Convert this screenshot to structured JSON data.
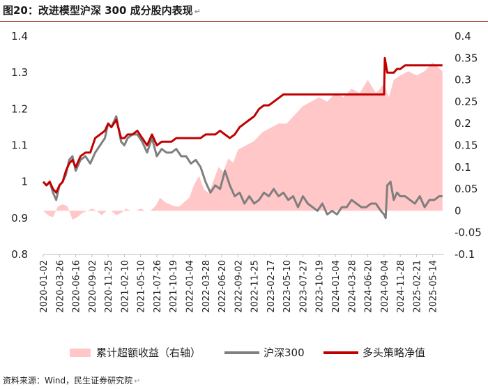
{
  "header": {
    "title": "图20：改进模型沪深 300 成分股内表现",
    "return_mark": "↵"
  },
  "footer": {
    "source": "资料来源：Wind，民生证券研究院"
  },
  "colors": {
    "area": "#ffc7c7",
    "hs300": "#7f7f7f",
    "strategy": "#c00000",
    "rule": "#8b0000"
  },
  "chart_data": {
    "type": "line",
    "title": "图20：改进模型沪深 300 成分股内表现",
    "x_tick_labels": [
      "2020-01-02",
      "2020-03-26",
      "2020-06-16",
      "2020-09-02",
      "2020-11-25",
      "2021-02-10",
      "2021-05-10",
      "2021-07-26",
      "2021-10-19",
      "2022-01-04",
      "2022-03-28",
      "2022-06-20",
      "2022-09-02",
      "2022-11-25",
      "2023-02-17",
      "2023-05-10",
      "2023-07-27",
      "2023-10-19",
      "2024-01-04",
      "2024-03-28",
      "2024-06-20",
      "2024-09-04",
      "2024-11-28",
      "2025-02-21",
      "2025-05-14"
    ],
    "x_range": [
      0,
      24.7
    ],
    "y_left": {
      "min": 0.8,
      "max": 1.4,
      "ticks": [
        "0.8",
        "0.9",
        "1",
        "1.1",
        "1.2",
        "1.3",
        "1.4"
      ]
    },
    "y_right": {
      "min": -0.1,
      "max": 0.4,
      "ticks": [
        "-0.1",
        "-0.05",
        "0",
        "0.05",
        "0.1",
        "0.15",
        "0.2",
        "0.25",
        "0.3",
        "0.35",
        "0.4"
      ]
    },
    "legend": [
      "累计超额收益（右轴）",
      "沪深300",
      "多头策略净值"
    ],
    "legend_position": "bottom",
    "series": [
      {
        "name": "累计超额收益（右轴）",
        "axis": "right",
        "type": "area",
        "x": [
          0,
          0.3,
          0.6,
          0.9,
          1.2,
          1.5,
          1.8,
          2.1,
          2.4,
          2.7,
          3.0,
          3.3,
          3.6,
          3.9,
          4.2,
          4.5,
          4.8,
          5.1,
          5.4,
          5.7,
          6.0,
          6.3,
          6.6,
          6.9,
          7.2,
          7.5,
          7.8,
          8.1,
          8.4,
          8.7,
          9.0,
          9.3,
          9.6,
          9.9,
          10.2,
          10.5,
          10.8,
          11.1,
          11.4,
          11.7,
          12.0,
          12.5,
          13.0,
          13.5,
          14.0,
          14.5,
          15.0,
          15.5,
          16.0,
          16.5,
          17.0,
          17.5,
          18.0,
          18.5,
          19.0,
          19.5,
          20.0,
          20.5,
          21.0,
          21.3,
          21.6,
          22.0,
          22.5,
          23.0,
          23.5,
          24.0,
          24.3,
          24.6
        ],
        "values": [
          0.0,
          -0.01,
          -0.015,
          0.01,
          0.015,
          0.01,
          -0.02,
          -0.015,
          -0.005,
          0.0,
          0.005,
          0.0,
          -0.01,
          0.0,
          0.0,
          -0.01,
          -0.005,
          0.005,
          0.0,
          0.0,
          0.005,
          0.0,
          0.0,
          0.01,
          0.03,
          0.02,
          0.015,
          0.01,
          0.01,
          0.02,
          0.03,
          0.06,
          0.08,
          0.05,
          0.04,
          0.07,
          0.1,
          0.09,
          0.12,
          0.11,
          0.14,
          0.15,
          0.16,
          0.18,
          0.19,
          0.2,
          0.2,
          0.22,
          0.24,
          0.25,
          0.26,
          0.25,
          0.27,
          0.26,
          0.28,
          0.27,
          0.3,
          0.27,
          0.29,
          0.26,
          0.3,
          0.31,
          0.32,
          0.31,
          0.32,
          0.34,
          0.33,
          0.32
        ]
      },
      {
        "name": "沪深300",
        "axis": "left",
        "type": "line",
        "x": [
          0,
          0.2,
          0.4,
          0.6,
          0.8,
          1.0,
          1.2,
          1.4,
          1.6,
          1.8,
          2.0,
          2.3,
          2.6,
          2.9,
          3.2,
          3.5,
          3.8,
          4.0,
          4.2,
          4.5,
          4.8,
          5.0,
          5.2,
          5.5,
          5.8,
          6.1,
          6.4,
          6.7,
          7.0,
          7.3,
          7.6,
          7.9,
          8.2,
          8.5,
          8.8,
          9.1,
          9.4,
          9.7,
          10.0,
          10.3,
          10.6,
          10.9,
          11.2,
          11.5,
          11.8,
          12.1,
          12.4,
          12.7,
          13.0,
          13.3,
          13.6,
          13.9,
          14.2,
          14.5,
          14.8,
          15.1,
          15.4,
          15.7,
          16.0,
          16.3,
          16.6,
          16.9,
          17.2,
          17.5,
          17.8,
          18.1,
          18.4,
          18.7,
          19.0,
          19.3,
          19.6,
          19.9,
          20.2,
          20.5,
          20.8,
          21.0,
          21.1,
          21.2,
          21.4,
          21.6,
          21.8,
          22.0,
          22.3,
          22.6,
          22.9,
          23.2,
          23.5,
          23.8,
          24.1,
          24.4,
          24.6
        ],
        "values": [
          1.0,
          0.99,
          1.0,
          0.97,
          0.95,
          0.99,
          1.0,
          1.02,
          1.06,
          1.07,
          1.03,
          1.06,
          1.07,
          1.05,
          1.08,
          1.1,
          1.12,
          1.16,
          1.15,
          1.18,
          1.11,
          1.1,
          1.12,
          1.13,
          1.13,
          1.11,
          1.08,
          1.12,
          1.07,
          1.09,
          1.08,
          1.08,
          1.09,
          1.07,
          1.07,
          1.05,
          1.06,
          1.04,
          1.0,
          0.97,
          0.99,
          0.98,
          1.03,
          0.99,
          0.96,
          0.97,
          0.94,
          0.96,
          0.94,
          0.95,
          0.97,
          0.96,
          0.98,
          0.96,
          0.97,
          0.95,
          0.96,
          0.93,
          0.96,
          0.94,
          0.93,
          0.92,
          0.94,
          0.91,
          0.92,
          0.91,
          0.93,
          0.93,
          0.95,
          0.94,
          0.93,
          0.93,
          0.94,
          0.94,
          0.92,
          0.91,
          0.9,
          0.99,
          1.0,
          0.95,
          0.97,
          0.96,
          0.96,
          0.95,
          0.94,
          0.96,
          0.93,
          0.95,
          0.95,
          0.96,
          0.96
        ]
      },
      {
        "name": "多头策略净值",
        "axis": "left",
        "type": "line",
        "x": [
          0,
          0.2,
          0.4,
          0.6,
          0.8,
          1.0,
          1.2,
          1.4,
          1.6,
          1.8,
          2.0,
          2.3,
          2.6,
          2.9,
          3.2,
          3.5,
          3.8,
          4.0,
          4.2,
          4.5,
          4.8,
          5.0,
          5.2,
          5.5,
          5.8,
          6.1,
          6.4,
          6.7,
          7.0,
          7.3,
          7.6,
          7.9,
          8.2,
          8.5,
          8.8,
          9.1,
          9.4,
          9.7,
          10.0,
          10.3,
          10.6,
          10.9,
          11.2,
          11.5,
          11.8,
          12.1,
          12.4,
          12.7,
          13.0,
          13.3,
          13.6,
          13.9,
          14.2,
          14.5,
          14.8,
          15.1,
          15.4,
          15.7,
          16.0,
          16.3,
          16.6,
          16.9,
          17.2,
          17.5,
          17.8,
          18.1,
          18.4,
          18.7,
          19.0,
          19.3,
          19.6,
          19.9,
          20.2,
          20.5,
          20.8,
          21.0,
          21.05,
          21.2,
          21.4,
          21.6,
          21.8,
          22.0,
          22.3,
          22.6,
          22.9,
          23.2,
          23.5,
          23.8,
          24.1,
          24.4,
          24.6
        ],
        "values": [
          1.0,
          0.99,
          1.0,
          0.98,
          0.97,
          0.99,
          1.0,
          1.03,
          1.05,
          1.06,
          1.04,
          1.07,
          1.08,
          1.08,
          1.12,
          1.13,
          1.14,
          1.16,
          1.15,
          1.17,
          1.12,
          1.12,
          1.13,
          1.13,
          1.14,
          1.12,
          1.1,
          1.13,
          1.1,
          1.11,
          1.11,
          1.11,
          1.12,
          1.12,
          1.12,
          1.12,
          1.12,
          1.12,
          1.13,
          1.13,
          1.13,
          1.14,
          1.13,
          1.12,
          1.13,
          1.15,
          1.16,
          1.17,
          1.18,
          1.2,
          1.21,
          1.21,
          1.22,
          1.23,
          1.24,
          1.24,
          1.24,
          1.24,
          1.24,
          1.24,
          1.24,
          1.24,
          1.24,
          1.24,
          1.24,
          1.24,
          1.24,
          1.24,
          1.24,
          1.24,
          1.24,
          1.24,
          1.24,
          1.24,
          1.24,
          1.24,
          1.34,
          1.3,
          1.3,
          1.3,
          1.31,
          1.31,
          1.32,
          1.32,
          1.32,
          1.32,
          1.32,
          1.32,
          1.32,
          1.32,
          1.32
        ]
      }
    ]
  }
}
